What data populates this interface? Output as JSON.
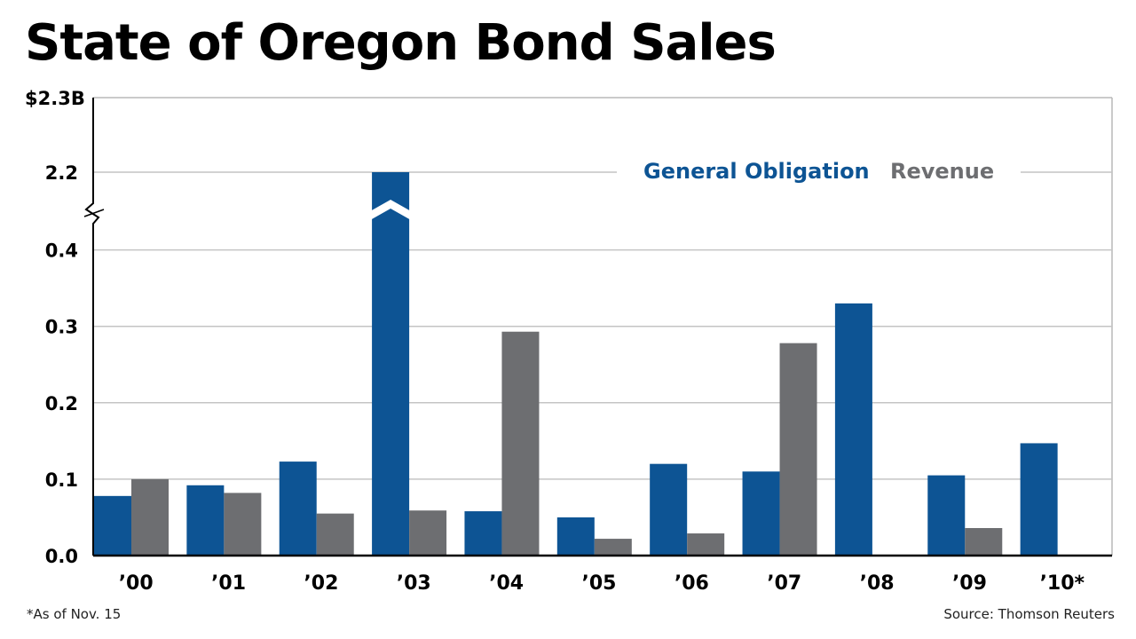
{
  "title": "State of Oregon Bond Sales",
  "footnote": "*As of Nov. 15",
  "source": "Source: Thomson Reuters",
  "chart_data": {
    "type": "bar",
    "title": "State of Oregon Bond Sales",
    "categories": [
      "’00",
      "’01",
      "’02",
      "’03",
      "’04",
      "’05",
      "’06",
      "’07",
      "’08",
      "’09",
      "’10*"
    ],
    "series": [
      {
        "name": "General Obligation",
        "color": "#0d5494",
        "values": [
          0.078,
          0.092,
          0.123,
          2.2,
          0.058,
          0.05,
          0.12,
          0.11,
          0.33,
          0.105,
          0.147
        ]
      },
      {
        "name": "Revenue",
        "color": "#6d6e71",
        "values": [
          0.1,
          0.082,
          0.055,
          0.059,
          0.293,
          0.022,
          0.029,
          0.278,
          0,
          0.036,
          0
        ]
      }
    ],
    "y_ticks": [
      "0.0",
      "0.1",
      "0.2",
      "0.3",
      "0.4",
      "2.2",
      "$2.3B"
    ],
    "ylim": [
      0,
      2.3
    ],
    "axis_break": {
      "from": 0.4,
      "to": 2.2
    },
    "grid": true,
    "legend_position": "top-right"
  }
}
